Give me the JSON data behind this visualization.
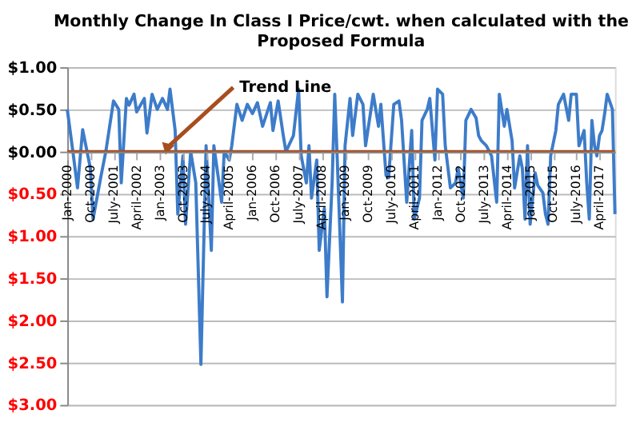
{
  "chart_data": {
    "type": "line",
    "title": "Monthly Change In Class I Price/cwt. when calculated with the Proposed Formula",
    "series": [
      {
        "color": "#3d7cc9",
        "x": [
          "2000-01",
          "2000-03",
          "2000-05",
          "2000-07",
          "2000-10",
          "2000-11",
          "2001-02",
          "2001-04",
          "2001-07",
          "2001-09",
          "2001-10",
          "2001-12",
          "2002-01",
          "2002-03",
          "2002-04",
          "2002-07",
          "2002-08",
          "2002-10",
          "2002-12",
          "2003-02",
          "2003-04",
          "2003-05",
          "2003-07",
          "2003-08",
          "2003-10",
          "2003-11",
          "2004-01",
          "2004-03",
          "2004-05",
          "2004-07",
          "2004-09",
          "2004-10",
          "2004-12",
          "2005-01",
          "2005-02",
          "2005-04",
          "2005-05",
          "2005-07",
          "2005-09",
          "2005-11",
          "2006-01",
          "2006-03",
          "2006-05",
          "2006-08",
          "2006-09",
          "2006-11",
          "2007-01",
          "2007-02",
          "2007-05",
          "2007-07",
          "2007-08",
          "2007-10",
          "2007-11",
          "2007-12",
          "2008-02",
          "2008-03",
          "2008-05",
          "2008-06",
          "2008-08",
          "2008-09",
          "2008-10",
          "2008-12",
          "2009-01",
          "2009-03",
          "2009-04",
          "2009-06",
          "2009-08",
          "2009-09",
          "2009-12",
          "2010-02",
          "2010-03",
          "2010-05",
          "2010-06",
          "2010-08",
          "2010-10",
          "2010-11",
          "2011-01",
          "2011-03",
          "2011-04",
          "2011-06",
          "2011-07",
          "2011-09",
          "2011-10",
          "2011-12",
          "2012-01",
          "2012-03",
          "2012-04",
          "2012-06",
          "2012-08",
          "2012-09",
          "2012-11",
          "2012-12",
          "2013-02",
          "2013-04",
          "2013-05",
          "2013-06",
          "2013-08",
          "2013-10",
          "2013-12",
          "2014-01",
          "2014-03",
          "2014-04",
          "2014-06",
          "2014-07",
          "2014-09",
          "2014-10",
          "2014-11",
          "2014-12",
          "2015-01",
          "2015-03",
          "2015-04",
          "2015-06",
          "2015-07",
          "2015-08",
          "2015-09",
          "2015-11",
          "2015-12",
          "2016-02",
          "2016-04",
          "2016-05",
          "2016-07",
          "2016-08",
          "2016-10",
          "2016-11",
          "2016-12",
          "2017-01",
          "2017-02",
          "2017-03",
          "2017-04",
          "2017-05",
          "2017-06",
          "2017-07",
          "2017-09",
          "2017-10"
        ],
        "values": [
          0.5,
          0.05,
          -0.43,
          0.26,
          -0.2,
          -0.8,
          -0.3,
          0,
          0.6,
          0.5,
          -0.37,
          0.63,
          0.55,
          0.68,
          0.47,
          0.63,
          0.22,
          0.68,
          0.5,
          0.63,
          0.5,
          0.74,
          0.25,
          -0.74,
          -0.05,
          -0.86,
          0,
          -0.37,
          -2.52,
          0.07,
          -1.17,
          0.07,
          -0.37,
          -0.6,
          0,
          -0.1,
          0.07,
          0.56,
          0.37,
          0.56,
          0.45,
          0.58,
          0.3,
          0.58,
          0.25,
          0.6,
          0.19,
          0,
          0.19,
          0.74,
          -0.05,
          -0.37,
          0.07,
          -0.55,
          -0.1,
          -1.17,
          -0.67,
          -1.72,
          -0.37,
          0.68,
          -0.1,
          -1.78,
          0.07,
          0.63,
          0.19,
          0.68,
          0.56,
          0.07,
          0.68,
          0.3,
          0.56,
          -0.28,
          -0.31,
          0.56,
          0.6,
          0.37,
          -0.6,
          0.25,
          -0.8,
          -0.55,
          0.37,
          0.5,
          0.63,
          -0.1,
          0.74,
          0.68,
          0.07,
          -0.43,
          -0.37,
          -0.2,
          -0.55,
          0.37,
          0.5,
          0.4,
          0.19,
          0.13,
          0.07,
          -0.05,
          -0.6,
          0.68,
          0.3,
          0.5,
          0.13,
          -0.43,
          -0.05,
          -0.2,
          -0.8,
          0.07,
          -0.86,
          -0.25,
          -0.4,
          -0.49,
          -0.74,
          -0.86,
          -0.05,
          0.25,
          0.56,
          0.68,
          0.37,
          0.68,
          0.68,
          0.07,
          0.25,
          -0.37,
          -0.8,
          0.37,
          0.07,
          -0.05,
          0.19,
          0.25,
          0.45,
          0.68,
          0.5,
          -0.74
        ]
      },
      {
        "type": "line",
        "color": "#a84d1f",
        "x": [
          "2000-01",
          "2017-10"
        ],
        "values": [
          0,
          0
        ]
      }
    ],
    "xlim": [
      "2000-01",
      "2017-10"
    ],
    "xticks": [
      {
        "value": "2000-01",
        "label": "Jan-2000"
      },
      {
        "value": "2000-10",
        "label": "Oct-2000"
      },
      {
        "value": "2001-07",
        "label": "July-2001"
      },
      {
        "value": "2002-04",
        "label": "April-2002"
      },
      {
        "value": "2003-01",
        "label": "Jan-2003"
      },
      {
        "value": "2003-10",
        "label": "Oct-2003"
      },
      {
        "value": "2004-07",
        "label": "July-2004"
      },
      {
        "value": "2005-04",
        "label": "April-2005"
      },
      {
        "value": "2006-01",
        "label": "Jan-2006"
      },
      {
        "value": "2006-10",
        "label": "Oct-2006"
      },
      {
        "value": "2007-07",
        "label": "July-2007"
      },
      {
        "value": "2008-04",
        "label": "April-2008"
      },
      {
        "value": "2009-01",
        "label": "Jan-2009"
      },
      {
        "value": "2009-10",
        "label": "Oct-2009"
      },
      {
        "value": "2010-07",
        "label": "July-2010"
      },
      {
        "value": "2011-04",
        "label": "April-2011"
      },
      {
        "value": "2012-01",
        "label": "Jan-2012"
      },
      {
        "value": "2012-10",
        "label": "Oct-2012"
      },
      {
        "value": "2013-07",
        "label": "July-2013"
      },
      {
        "value": "2014-04",
        "label": "April-2014"
      },
      {
        "value": "2015-01",
        "label": "Jan-2015"
      },
      {
        "value": "2015-10",
        "label": "Oct-2015"
      },
      {
        "value": "2016-07",
        "label": "July-2016"
      },
      {
        "value": "2017-04",
        "label": "April-2017"
      }
    ],
    "ylim": [
      -3,
      1
    ],
    "yticks": [
      {
        "value": -3,
        "label": "$3.00"
      },
      {
        "value": -2.5,
        "label": "$2.50"
      },
      {
        "value": -2,
        "label": "$2.00"
      },
      {
        "value": -1.5,
        "label": "$1.50"
      },
      {
        "value": -1,
        "label": "$1.00"
      },
      {
        "value": -0.5,
        "label": "$0.50"
      },
      {
        "value": 0,
        "label": "$0.00"
      },
      {
        "value": 0.5,
        "label": "$0.50"
      },
      {
        "value": 1,
        "label": "$1.00"
      }
    ],
    "grid": "y",
    "line_style": "solid",
    "annotations": [
      {
        "text": "Trend Line",
        "x": "2003-04",
        "y": 0
      }
    ]
  }
}
